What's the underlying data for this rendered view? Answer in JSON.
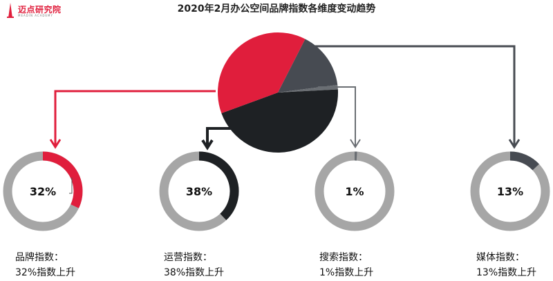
{
  "logo": {
    "text": "迈点研究院",
    "sub": "MEADIN ACADEMY"
  },
  "colors": {
    "brand": "#e01e3c",
    "operation": "#1e2124",
    "search": "#6a6e73",
    "media": "#474b52",
    "ring": "#a6a6a6"
  },
  "chart_data": {
    "type": "pie",
    "title": "2020年2月办公空间品牌指数各维度变动趋势",
    "slices": [
      {
        "key": "brand",
        "value": 32,
        "label": "32%",
        "caption_name": "品牌指数：",
        "caption_change": "32%指数上升"
      },
      {
        "key": "operation",
        "value": 38,
        "label": "38%",
        "caption_name": "运营指数：",
        "caption_change": "38%指数上升"
      },
      {
        "key": "search",
        "value": 1,
        "label": "1%",
        "caption_name": "搜索指数：",
        "caption_change": "1%指数上升"
      },
      {
        "key": "media",
        "value": 13,
        "label": "13%",
        "caption_name": "媒体指数：",
        "caption_change": "13%指数上升"
      }
    ]
  }
}
